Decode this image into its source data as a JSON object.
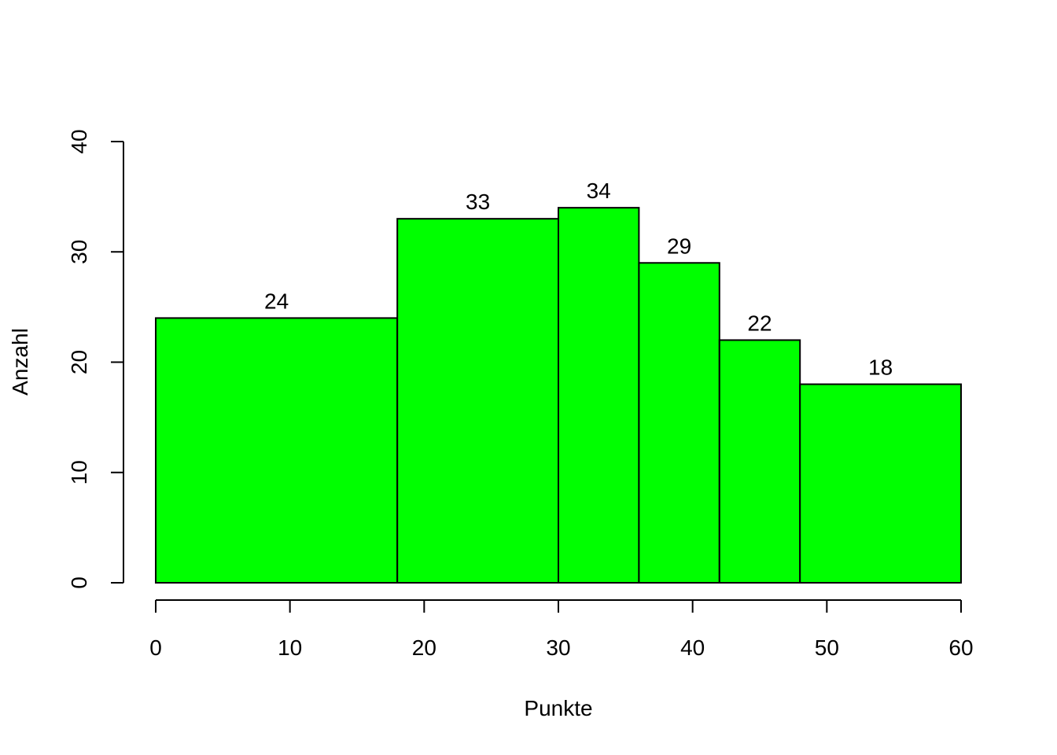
{
  "chart_data": {
    "type": "histogram",
    "x_label": "Punkte",
    "y_label": "Anzahl",
    "bins": [
      0,
      18,
      30,
      36,
      42,
      48,
      60
    ],
    "values": [
      24,
      33,
      34,
      29,
      22,
      18
    ],
    "color": "#00ff00",
    "xlim": [
      0,
      60
    ],
    "xticks": [
      0,
      10,
      20,
      30,
      40,
      50,
      60
    ],
    "ylim": [
      0,
      40
    ],
    "yticks": [
      0,
      10,
      20,
      30,
      40
    ]
  }
}
